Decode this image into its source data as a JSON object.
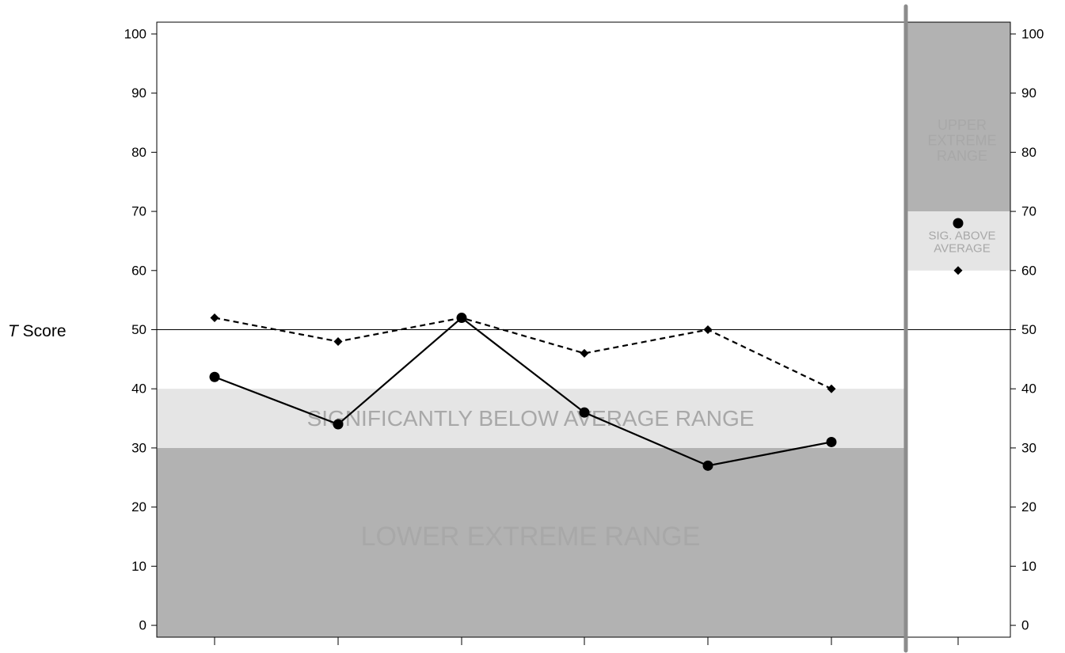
{
  "chart_data": {
    "type": "line",
    "ylabel_italic": "T",
    "ylabel_rest": " Score",
    "ylim": [
      -2,
      102
    ],
    "y_ticks": [
      "0",
      "10",
      "20",
      "30",
      "40",
      "50",
      "60",
      "70",
      "80",
      "90",
      "100"
    ],
    "x_ticks": [
      "",
      "",
      "",
      "",
      "",
      ""
    ],
    "reference_line": 50,
    "main_panel": {
      "bands": [
        {
          "label": "LOWER EXTREME RANGE",
          "from": -2,
          "to": 30,
          "color": "#b2b2b2"
        },
        {
          "label": "SIGNIFICANTLY BELOW AVERAGE RANGE",
          "from": 30,
          "to": 40,
          "color": "#e5e5e5"
        }
      ],
      "series": [
        {
          "style": "solid",
          "marker": "circle",
          "values": [
            42,
            34,
            52,
            36,
            27,
            31
          ]
        },
        {
          "style": "dashed",
          "marker": "diamond",
          "values": [
            52,
            48,
            52,
            46,
            50,
            40
          ]
        }
      ]
    },
    "side_panel": {
      "bands": [
        {
          "label_lines": [
            "UPPER",
            "EXTREME",
            "RANGE"
          ],
          "from": 70,
          "to": 102,
          "color": "#b2b2b2"
        },
        {
          "label_lines": [
            "SIG. ABOVE",
            "AVERAGE"
          ],
          "from": 60,
          "to": 70,
          "color": "#e5e5e5"
        }
      ],
      "points": [
        {
          "marker": "circle",
          "value": 68
        },
        {
          "marker": "diamond",
          "value": 60
        }
      ]
    },
    "divider_color": "#8c8c8c"
  }
}
